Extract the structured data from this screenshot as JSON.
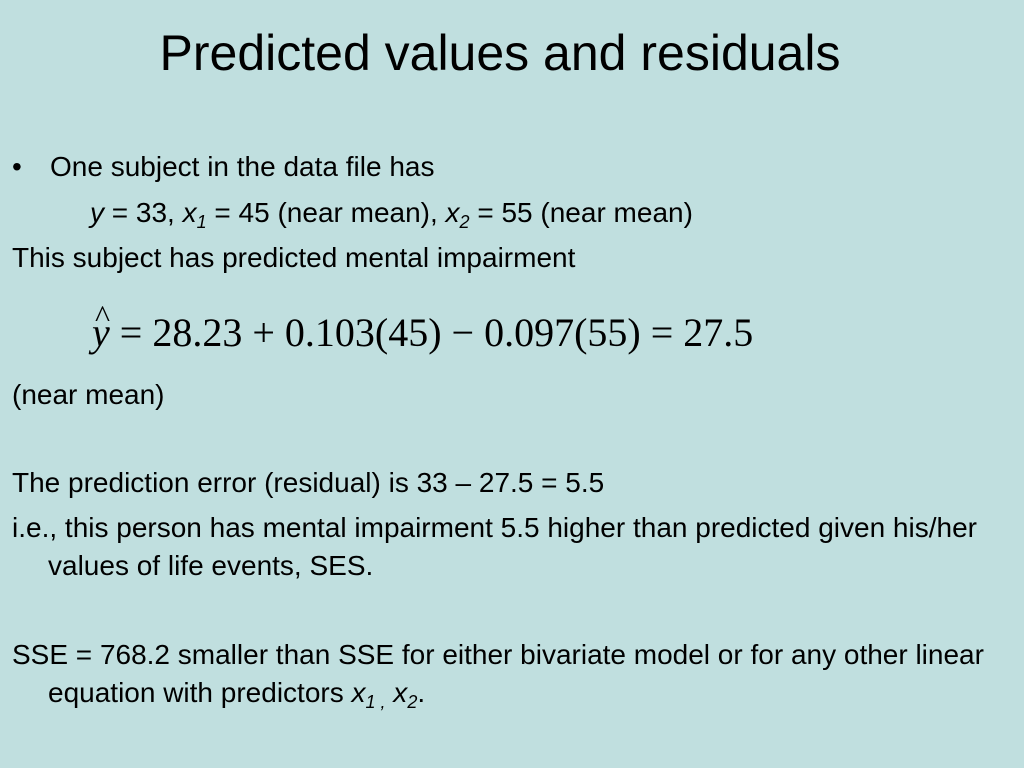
{
  "title": "Predicted values and residuals",
  "bullet_char": "•",
  "line1": "One subject in the data file has",
  "line2": {
    "y_var": "y",
    "eq1": " = 33, ",
    "x_var": "x",
    "sub1": "1",
    "eq2": " = 45 (near mean), ",
    "x2_var": "x",
    "sub2": "2",
    "eq3": " = 55 (near mean)"
  },
  "line3": "This subject has predicted mental impairment",
  "equation": {
    "hat": "^",
    "y": "y",
    "rest": " = 28.23 + 0.103(45) − 0.097(55) = 27.5"
  },
  "line4": "(near mean)",
  "line5": "The prediction error (residual) is 33 – 27.5 = 5.5",
  "line6": "i.e., this person has mental impairment 5.5 higher than predicted given his/her values of life events, SES.",
  "line7": {
    "text": "SSE = 768.2 smaller than SSE for either bivariate model or for any other linear equation with predictors ",
    "x_a": "x",
    "sub_a": "1 ,",
    "x_b": " x",
    "sub_b": "2",
    "end": "."
  }
}
